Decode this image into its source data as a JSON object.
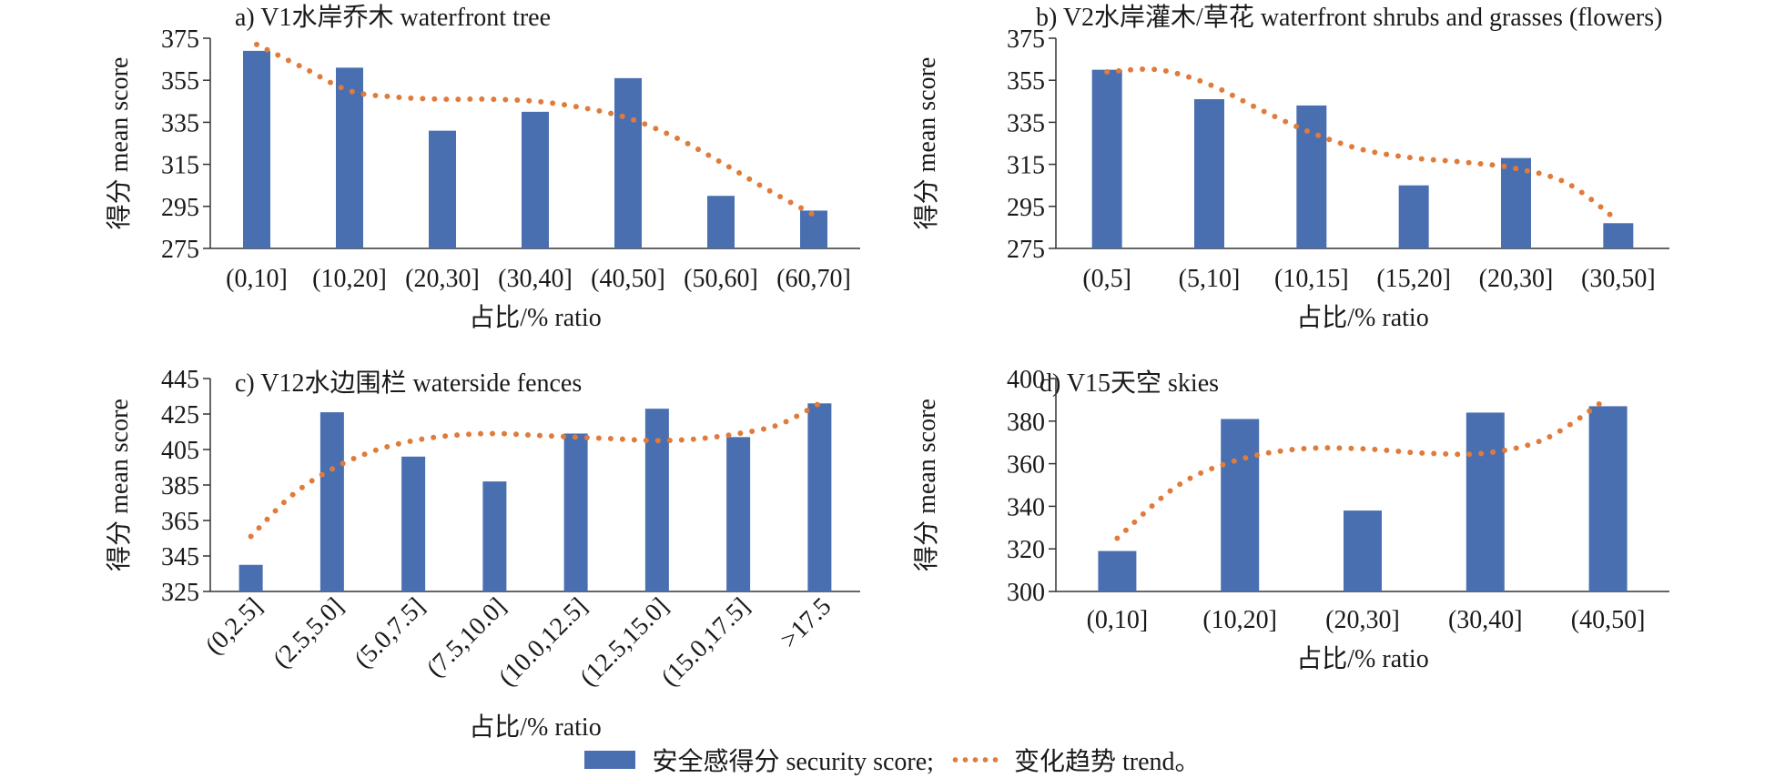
{
  "chart_data": [
    {
      "type": "bar",
      "title": "a) V1水岸乔木 waterfront tree",
      "xlabel": "占比/% ratio",
      "ylabel": "得分 mean score",
      "ylim": [
        275,
        375
      ],
      "yticks": [
        275,
        295,
        315,
        335,
        355,
        375
      ],
      "categories": [
        "(0,10]",
        "(10,20]",
        "(20,30]",
        "(30,40]",
        "(40,50]",
        "(50,60]",
        "(60,70]"
      ],
      "series": [
        {
          "name": "安全感得分 security score",
          "type": "bar",
          "values": [
            369,
            361,
            331,
            340,
            356,
            300,
            293
          ]
        },
        {
          "name": "变化趋势 trend",
          "type": "line",
          "style": "dotted",
          "x": [
            0,
            0.5,
            1,
            1.5,
            2,
            2.5,
            3,
            3.5,
            4,
            4.5,
            5,
            5.5,
            6
          ],
          "values": [
            372,
            361,
            350,
            347,
            346,
            346,
            345,
            342,
            337,
            328,
            316,
            303,
            291
          ]
        }
      ],
      "grid": false,
      "label_rotation": 0
    },
    {
      "type": "bar",
      "title": "b) V2水岸灌木/草花 waterfront shrubs and grasses (flowers)",
      "xlabel": "占比/% ratio",
      "ylabel": "得分 mean score",
      "ylim": [
        275,
        375
      ],
      "yticks": [
        275,
        295,
        315,
        335,
        355,
        375
      ],
      "categories": [
        "(0,5]",
        "(5,10]",
        "(10,15]",
        "(15,20]",
        "(20,30]",
        "(30,50]"
      ],
      "series": [
        {
          "name": "安全感得分 security score",
          "type": "bar",
          "values": [
            360,
            346,
            343,
            305,
            318,
            287
          ]
        },
        {
          "name": "变化趋势 trend",
          "type": "line",
          "style": "dotted",
          "x": [
            0,
            0.5,
            1,
            1.5,
            2,
            2.5,
            3,
            3.5,
            4,
            4.5,
            5
          ],
          "values": [
            359,
            360,
            353,
            341,
            330,
            322,
            318,
            316,
            313,
            306,
            288
          ]
        }
      ],
      "grid": false,
      "label_rotation": 0
    },
    {
      "type": "bar",
      "title": "c) V12水边围栏 waterside fences",
      "xlabel": "占比/% ratio",
      "ylabel": "得分 mean score",
      "ylim": [
        325,
        445
      ],
      "yticks": [
        325,
        345,
        365,
        385,
        405,
        425,
        445
      ],
      "categories": [
        "(0,2.5]",
        "(2.5,5.0]",
        "(5.0,7.5]",
        "(7.5,10.0]",
        "(10.0,12.5]",
        "(12.5,15.0]",
        "(15.0,17.5]",
        ">17.5"
      ],
      "series": [
        {
          "name": "安全感得分 security score",
          "type": "bar",
          "values": [
            340,
            426,
            401,
            387,
            414,
            428,
            412,
            431
          ]
        },
        {
          "name": "变化趋势 trend",
          "type": "line",
          "style": "dotted",
          "x": [
            0,
            0.5,
            1,
            1.5,
            2,
            2.5,
            3,
            3.5,
            4,
            4.5,
            5,
            5.5,
            6,
            6.5,
            7
          ],
          "values": [
            356,
            379,
            394,
            404,
            410,
            413,
            414,
            413,
            412,
            411,
            410,
            411,
            414,
            419,
            431
          ]
        }
      ],
      "grid": false,
      "label_rotation": -45
    },
    {
      "type": "bar",
      "title": "d) V15天空 skies",
      "xlabel": "占比/% ratio",
      "ylabel": "得分 mean score",
      "ylim": [
        300,
        400
      ],
      "yticks": [
        300,
        320,
        340,
        360,
        380,
        400
      ],
      "categories": [
        "(0,10]",
        "(10,20]",
        "(20,30]",
        "(30,40]",
        "(40,50]"
      ],
      "series": [
        {
          "name": "安全感得分 security score",
          "type": "bar",
          "values": [
            319,
            381,
            338,
            384,
            387
          ]
        },
        {
          "name": "变化趋势 trend",
          "type": "line",
          "style": "dotted",
          "x": [
            0,
            0.5,
            1,
            1.5,
            2,
            2.5,
            3,
            3.5,
            4
          ],
          "values": [
            325,
            350,
            362,
            367,
            367,
            365,
            365,
            372,
            391
          ]
        }
      ],
      "grid": false,
      "label_rotation": 0
    }
  ],
  "legend": {
    "bar_label": "安全感得分 security score;",
    "trend_label": "变化趋势 trend。"
  },
  "colors": {
    "bar": "#4a6fb0",
    "trend": "#e07b3b",
    "axis": "#333333"
  }
}
